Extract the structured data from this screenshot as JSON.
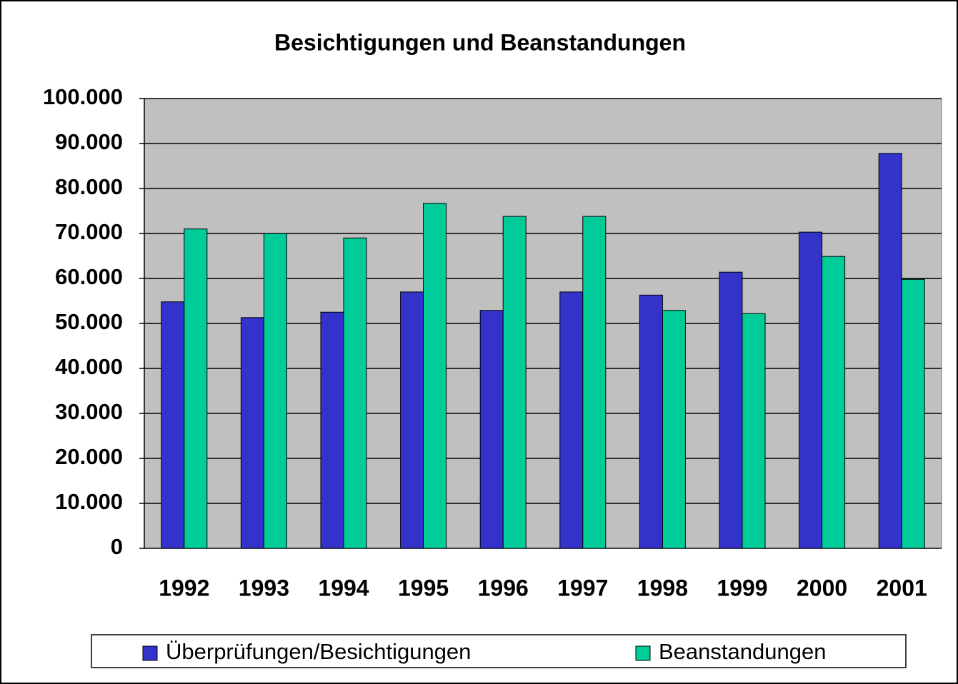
{
  "chart_data": {
    "type": "bar",
    "title": "Besichtigungen und Beanstandungen",
    "categories": [
      "1992",
      "1993",
      "1994",
      "1995",
      "1996",
      "1997",
      "1998",
      "1999",
      "2000",
      "2001"
    ],
    "series": [
      {
        "name": "Überprüfungen/Besichtigungen",
        "color": "#3333cc",
        "values": [
          54800,
          51300,
          52500,
          57000,
          52900,
          57000,
          56300,
          61400,
          70300,
          87800
        ]
      },
      {
        "name": "Beanstandungen",
        "color": "#00cc99",
        "values": [
          71000,
          70000,
          69000,
          76700,
          73800,
          73800,
          52900,
          52200,
          64900,
          59800
        ]
      }
    ],
    "ylim": [
      0,
      100000
    ],
    "yticks": [
      0,
      {
        "value": 10000,
        "label": "10.000"
      },
      {
        "value": 20000,
        "label": "20.000"
      },
      {
        "value": 30000,
        "label": "30.000"
      },
      {
        "value": 40000,
        "label": "40.000"
      },
      {
        "value": 50000,
        "label": "50.000"
      },
      {
        "value": 60000,
        "label": "60.000"
      },
      {
        "value": 70000,
        "label": "70.000"
      },
      {
        "value": 80000,
        "label": "80.000"
      },
      {
        "value": 90000,
        "label": "90.000"
      },
      {
        "value": 100000,
        "label": "100.000"
      }
    ],
    "grid": true,
    "plot_background": "#c0c0c0",
    "legend": "bottom"
  }
}
